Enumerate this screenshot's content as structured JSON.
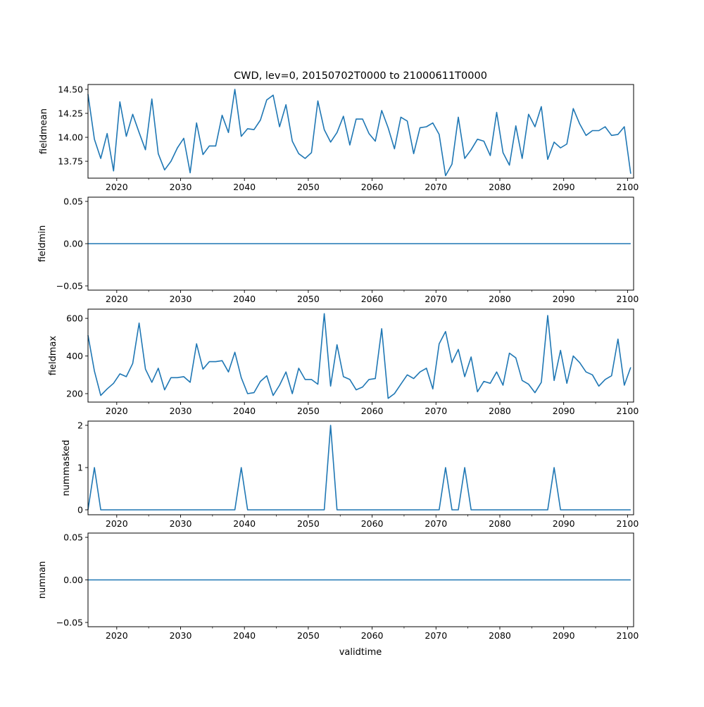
{
  "chart_data": {
    "type": "line",
    "title": "CWD, lev=0, 20150702T0000 to 21000611T0000",
    "xlabel": "validtime",
    "x_start_year": 2015,
    "x_end_year": 2100,
    "xlim": [
      2015.5,
      2100.95
    ],
    "x_ticks": [
      2020,
      2030,
      2040,
      2050,
      2060,
      2070,
      2080,
      2090,
      2100
    ],
    "x_tick_labels": [
      "2020",
      "2030",
      "2040",
      "2050",
      "2060",
      "2070",
      "2080",
      "2090",
      "2100"
    ],
    "grid": false,
    "line_color": "#1f77b4",
    "panels": [
      {
        "ylabel": "fieldmean",
        "ylim": [
          13.574,
          14.551
        ],
        "y_ticks": [
          13.75,
          14.0,
          14.25,
          14.5
        ],
        "y_tick_labels": [
          "13.75",
          "14.00",
          "14.25",
          "14.50"
        ],
        "values": [
          14.45,
          13.98,
          13.78,
          14.04,
          13.65,
          14.37,
          14.01,
          14.24,
          14.05,
          13.87,
          14.4,
          13.83,
          13.66,
          13.75,
          13.89,
          13.99,
          13.63,
          14.15,
          13.82,
          13.91,
          13.91,
          14.23,
          14.05,
          14.5,
          14.01,
          14.09,
          14.08,
          14.18,
          14.39,
          14.44,
          14.11,
          14.34,
          13.96,
          13.83,
          13.78,
          13.84,
          14.38,
          14.08,
          13.95,
          14.05,
          14.22,
          13.92,
          14.19,
          14.19,
          14.04,
          13.96,
          14.28,
          14.1,
          13.88,
          14.21,
          14.17,
          13.83,
          14.1,
          14.11,
          14.15,
          14.03,
          13.6,
          13.72,
          14.21,
          13.78,
          13.87,
          13.98,
          13.96,
          13.81,
          14.26,
          13.84,
          13.71,
          14.12,
          13.78,
          14.24,
          14.11,
          14.32,
          13.77,
          13.95,
          13.89,
          13.93,
          14.3,
          14.14,
          14.02,
          14.07,
          14.07,
          14.11,
          14.02,
          14.03,
          14.11,
          13.62
        ]
      },
      {
        "ylabel": "fieldmin",
        "ylim": [
          -0.055,
          0.055
        ],
        "y_ticks": [
          -0.05,
          0.0,
          0.05
        ],
        "y_tick_labels": [
          "−0.05",
          "0.00",
          "0.05"
        ],
        "constant_value": 0
      },
      {
        "ylabel": "fieldmax",
        "ylim": [
          155,
          649
        ],
        "y_ticks": [
          200,
          400,
          600
        ],
        "y_tick_labels": [
          "200",
          "400",
          "600"
        ],
        "values": [
          510,
          320,
          190,
          225,
          255,
          305,
          290,
          360,
          575,
          330,
          260,
          335,
          220,
          285,
          285,
          290,
          260,
          465,
          330,
          370,
          370,
          375,
          315,
          420,
          285,
          200,
          205,
          265,
          295,
          190,
          245,
          315,
          200,
          335,
          275,
          275,
          250,
          625,
          240,
          460,
          290,
          275,
          220,
          235,
          275,
          280,
          545,
          175,
          200,
          250,
          300,
          280,
          315,
          335,
          225,
          465,
          530,
          365,
          435,
          290,
          395,
          210,
          265,
          255,
          315,
          245,
          415,
          390,
          270,
          250,
          205,
          260,
          615,
          270,
          430,
          255,
          400,
          365,
          315,
          300,
          240,
          275,
          295,
          490,
          245,
          340
        ]
      },
      {
        "ylabel": "nummasked",
        "ylim": [
          -0.117,
          2.1
        ],
        "y_ticks": [
          0,
          1,
          2
        ],
        "y_tick_labels": [
          "0",
          "1",
          "2"
        ],
        "values": [
          0,
          1,
          0,
          0,
          0,
          0,
          0,
          0,
          0,
          0,
          0,
          0,
          0,
          0,
          0,
          0,
          0,
          0,
          0,
          0,
          0,
          0,
          0,
          0,
          1,
          0,
          0,
          0,
          0,
          0,
          0,
          0,
          0,
          0,
          0,
          0,
          0,
          0,
          2,
          0,
          0,
          0,
          0,
          0,
          0,
          0,
          0,
          0,
          0,
          0,
          0,
          0,
          0,
          0,
          0,
          0,
          1,
          0,
          0,
          1,
          0,
          0,
          0,
          0,
          0,
          0,
          0,
          0,
          0,
          0,
          0,
          0,
          0,
          1,
          0,
          0,
          0,
          0,
          0,
          0,
          0,
          0,
          0,
          0,
          0,
          0
        ]
      },
      {
        "ylabel": "numnan",
        "ylim": [
          -0.055,
          0.055
        ],
        "y_ticks": [
          -0.05,
          0.0,
          0.05
        ],
        "y_tick_labels": [
          "−0.05",
          "0.00",
          "0.05"
        ],
        "constant_value": 0
      }
    ]
  }
}
